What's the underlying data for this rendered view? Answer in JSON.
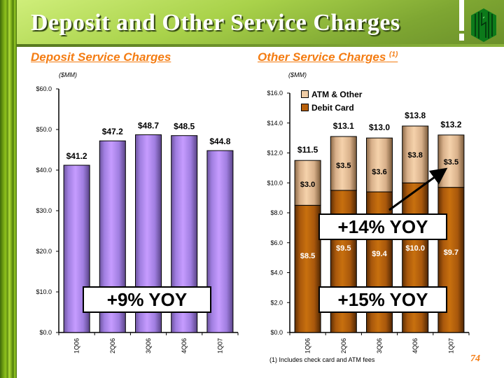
{
  "header": {
    "title": "Deposit and Other Service Charges",
    "page_number": "74"
  },
  "colors": {
    "accent_orange": "#f47c12",
    "banner_green": "#a9d24a",
    "deposit_bar": "#b88ef0",
    "debit_card": "#b8600a",
    "atm_other": "#e8c39a"
  },
  "chart_data": [
    {
      "type": "bar",
      "title": "Deposit Service Charges",
      "unit_label": "($MM)",
      "categories": [
        "1Q06",
        "2Q06",
        "3Q06",
        "4Q06",
        "1Q07"
      ],
      "values": [
        41.2,
        47.2,
        48.7,
        48.5,
        44.8
      ],
      "data_labels": [
        "$41.2",
        "$47.2",
        "$48.7",
        "$48.5",
        "$44.8"
      ],
      "ylim": [
        0,
        60
      ],
      "yticks": [
        "$0.0",
        "$10.0",
        "$20.0",
        "$30.0",
        "$40.0",
        "$50.0",
        "$60.0"
      ],
      "xlabel": "",
      "ylabel": "",
      "grid": false,
      "annotations": [
        "+9% YOY"
      ]
    },
    {
      "type": "bar",
      "stacked": true,
      "title": "Other Service Charges",
      "title_superscript": "(1)",
      "unit_label": "($MM)",
      "categories": [
        "1Q06",
        "2Q06",
        "3Q06",
        "4Q06",
        "1Q07"
      ],
      "series": [
        {
          "name": "Debit Card",
          "values": [
            8.5,
            9.5,
            9.4,
            10.0,
            9.7
          ],
          "labels": [
            "$8.5",
            "$9.5",
            "$9.4",
            "$10.0",
            "$9.7"
          ]
        },
        {
          "name": "ATM & Other",
          "values": [
            3.0,
            3.5,
            3.6,
            3.8,
            3.5
          ],
          "labels": [
            "$3.0",
            "$3.5",
            "$3.6",
            "$3.8",
            "$3.5"
          ]
        }
      ],
      "totals": [
        11.5,
        13.1,
        13.0,
        13.8,
        13.2
      ],
      "total_labels": [
        "$11.5",
        "$13.1",
        "$13.0",
        "$13.8",
        "$13.2"
      ],
      "legend": [
        "ATM & Other",
        "Debit Card"
      ],
      "legend_position": "top-left",
      "ylim": [
        0,
        16
      ],
      "yticks": [
        "$0.0",
        "$2.0",
        "$4.0",
        "$6.0",
        "$8.0",
        "$10.0",
        "$12.0",
        "$14.0",
        "$16.0"
      ],
      "xlabel": "",
      "ylabel": "",
      "grid": false,
      "annotations": [
        "+14% YOY",
        "+15% YOY"
      ],
      "footnote": "(1)  Includes check card and ATM fees"
    }
  ]
}
